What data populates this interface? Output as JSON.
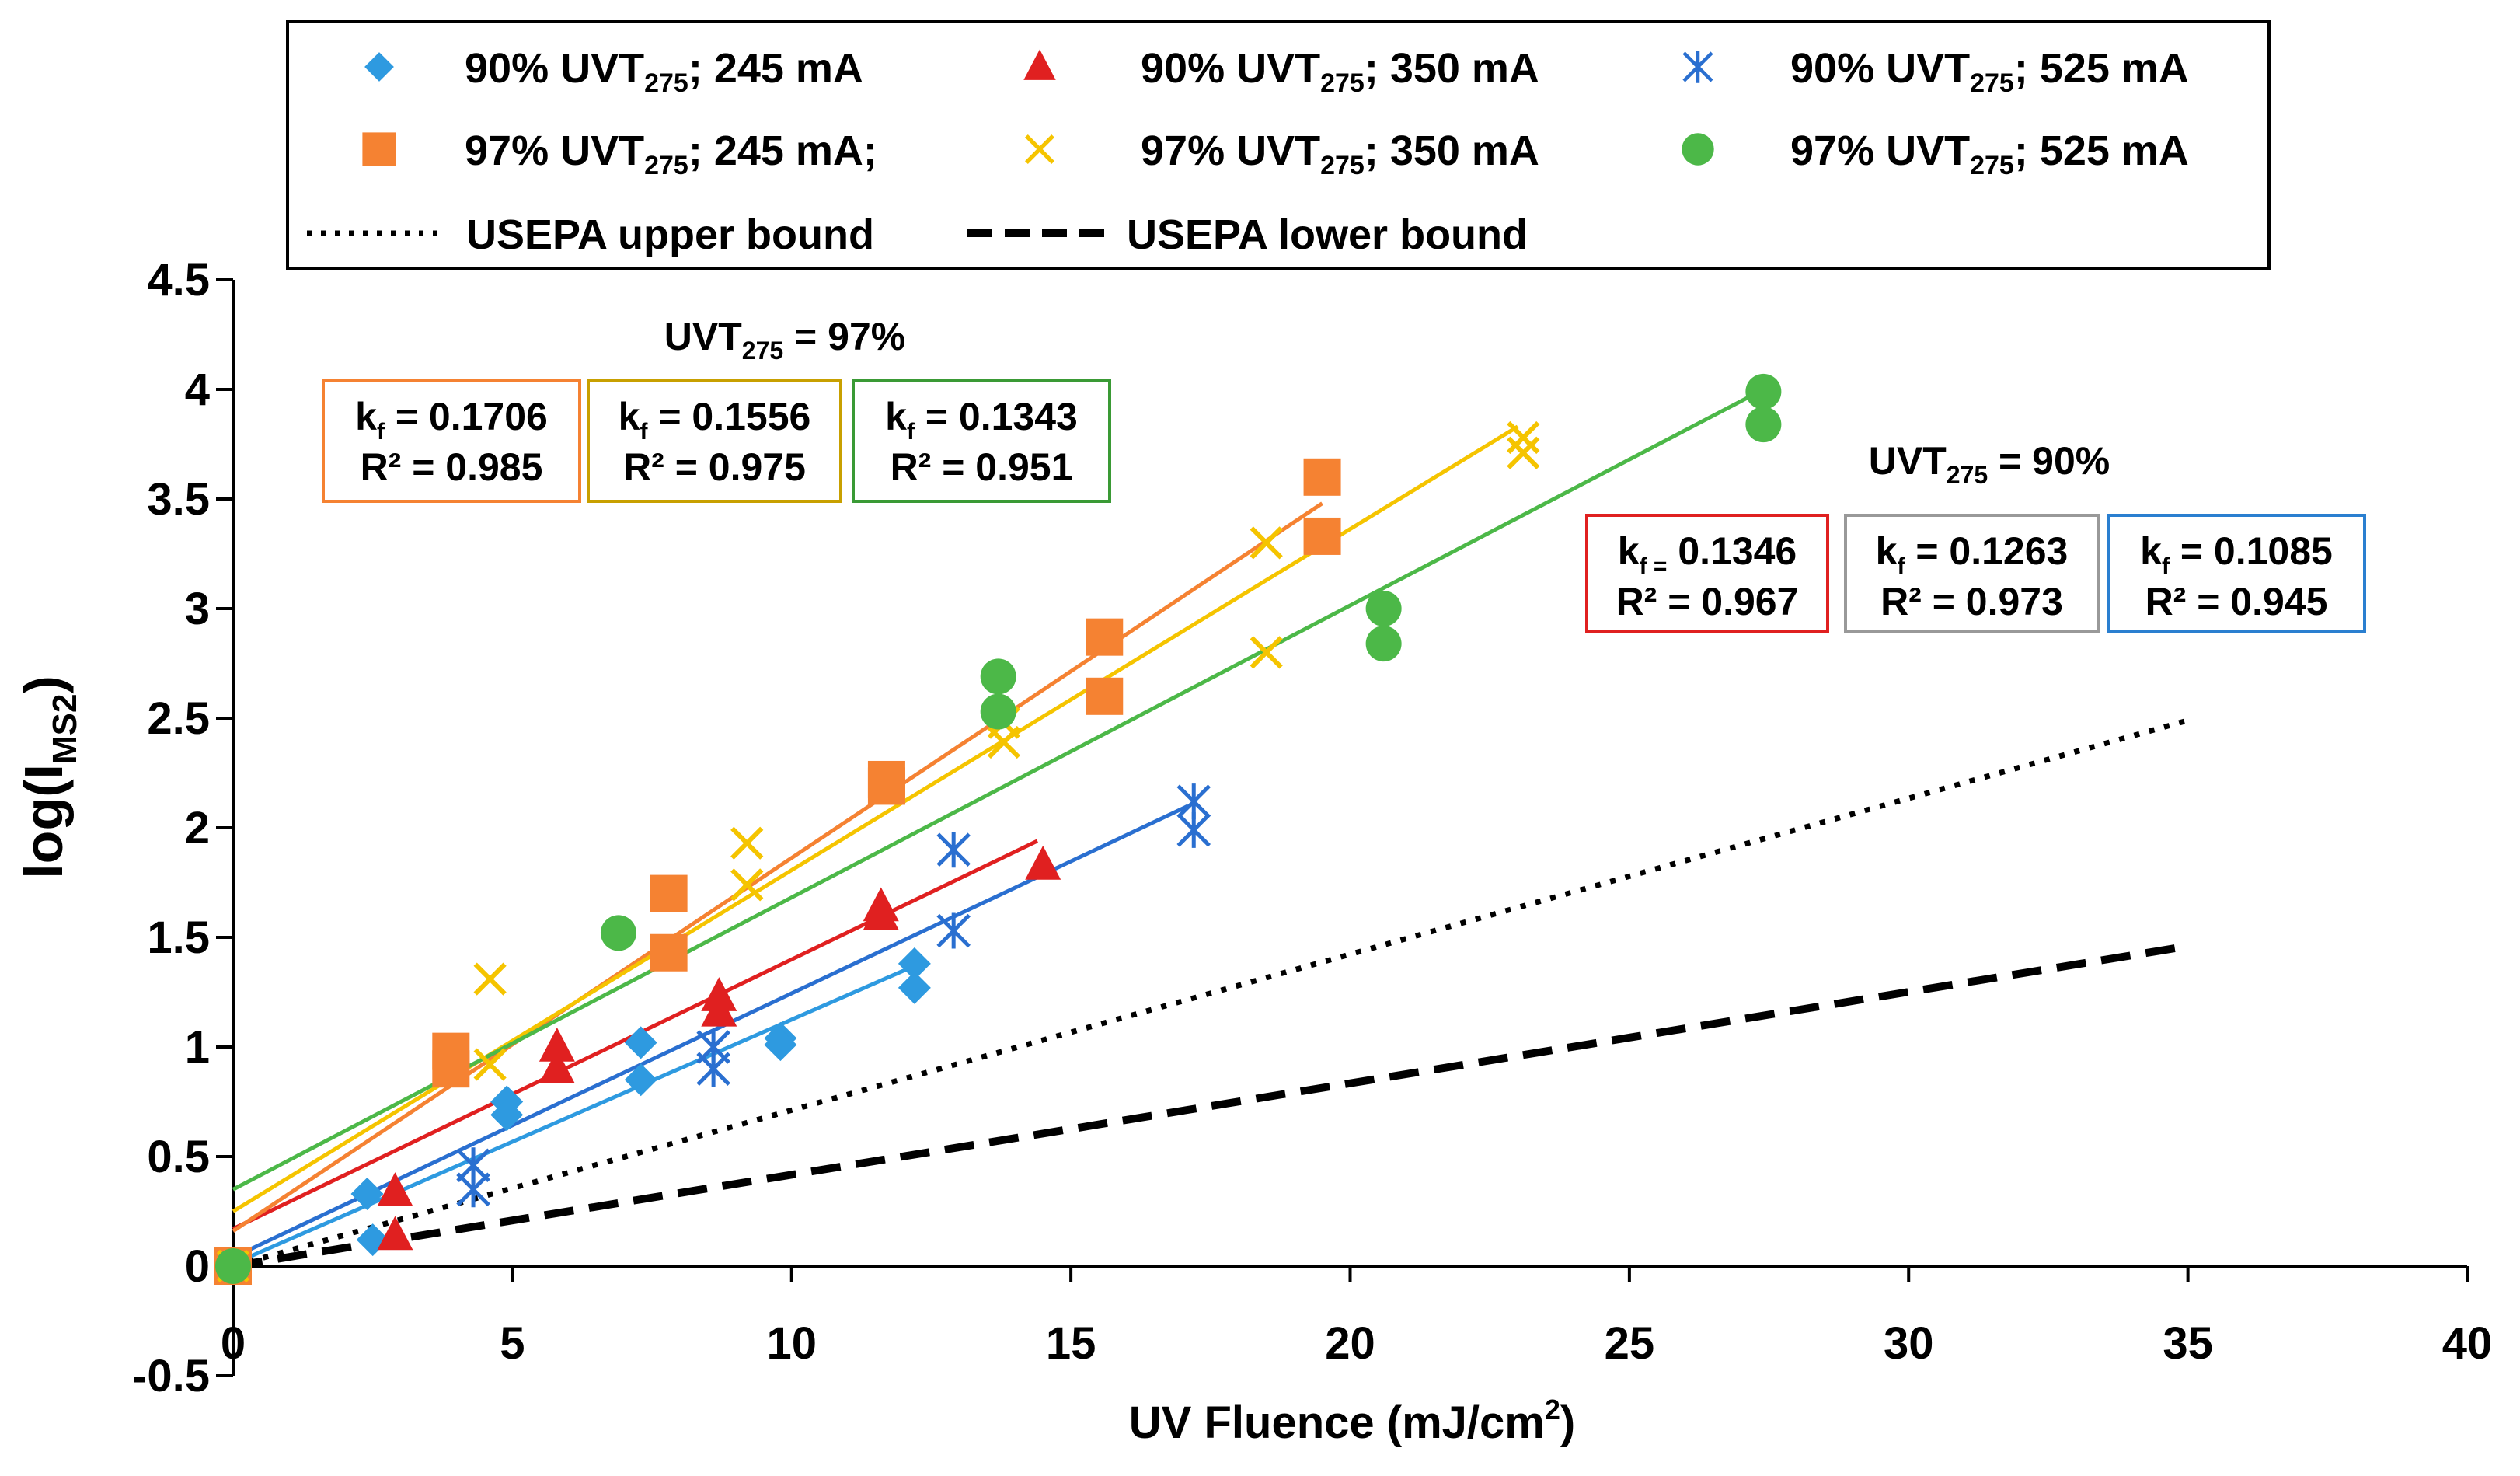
{
  "chart_data": {
    "type": "scatter",
    "xlabel": "UV Fluence (mJ/cm",
    "xlabel_sup": "2",
    "xlabel_end": ")",
    "ylabel_main": "log(I",
    "ylabel_sub": "MS2",
    "ylabel_end": ")",
    "xlim": [
      0,
      40
    ],
    "ylim": [
      -0.5,
      4.5
    ],
    "x_ticks": [
      0,
      5,
      10,
      15,
      20,
      25,
      30,
      35,
      40
    ],
    "x_tick_labels": [
      "0",
      "5",
      "10",
      "15",
      "20",
      "25",
      "30",
      "35",
      "40"
    ],
    "y_ticks": [
      -0.5,
      0,
      0.5,
      1,
      1.5,
      2,
      2.5,
      3,
      3.5,
      4,
      4.5
    ],
    "y_tick_labels": [
      "-0.5",
      "0",
      "0.5",
      "1",
      "1.5",
      "2",
      "2.5",
      "3",
      "3.5",
      "4",
      "4.5"
    ],
    "grid": false,
    "legend_position": "top",
    "series": [
      {
        "id": "s90_245",
        "uvt": "90%",
        "label_pre": "UVT",
        "label_sub": "275",
        "current": "; 245 mA",
        "color": "#2E9AE0",
        "marker": "diamond",
        "points": [
          [
            0,
            0
          ],
          [
            2.4,
            0.33
          ],
          [
            2.5,
            0.12
          ],
          [
            4.9,
            0.75
          ],
          [
            4.9,
            0.69
          ],
          [
            7.3,
            1.02
          ],
          [
            7.3,
            0.85
          ],
          [
            9.8,
            1.04
          ],
          [
            9.8,
            1.01
          ],
          [
            12.2,
            1.38
          ],
          [
            12.2,
            1.27
          ]
        ],
        "fit": {
          "x": [
            0,
            12.2
          ],
          "y": [
            0.01,
            1.37
          ]
        }
      },
      {
        "id": "s90_350",
        "uvt": "90%",
        "label_pre": "UVT",
        "label_sub": "275",
        "current": "; 350 mA",
        "color": "#E02020",
        "marker": "triangle",
        "points": [
          [
            0,
            0
          ],
          [
            2.9,
            0.34
          ],
          [
            2.9,
            0.14
          ],
          [
            5.8,
            1.0
          ],
          [
            5.8,
            0.9
          ],
          [
            8.7,
            1.23
          ],
          [
            8.7,
            1.16
          ],
          [
            11.6,
            1.64
          ],
          [
            11.6,
            1.6
          ],
          [
            14.5,
            1.83
          ]
        ],
        "fit": {
          "x": [
            0,
            14.4
          ],
          "y": [
            0.17,
            1.94
          ]
        }
      },
      {
        "id": "s90_525",
        "uvt": "90%",
        "label_pre": "UVT",
        "label_sub": "275",
        "current": "; 525 mA",
        "color": "#2A6FD0",
        "marker": "asterisk",
        "points": [
          [
            0,
            0
          ],
          [
            4.3,
            0.46
          ],
          [
            4.3,
            0.35
          ],
          [
            8.6,
            1.0
          ],
          [
            8.6,
            0.9
          ],
          [
            12.9,
            1.9
          ],
          [
            12.9,
            1.53
          ],
          [
            17.2,
            2.12
          ],
          [
            17.2,
            1.99
          ]
        ],
        "fit": {
          "x": [
            0,
            17.1
          ],
          "y": [
            0.04,
            2.1
          ]
        }
      },
      {
        "id": "s97_245",
        "uvt": "97%",
        "label_pre": "UVT",
        "label_sub": "275",
        "current": "; 245 mA;",
        "color": "#F58232",
        "marker": "square",
        "points": [
          [
            0,
            0
          ],
          [
            3.9,
            0.98
          ],
          [
            3.9,
            0.9
          ],
          [
            7.8,
            1.7
          ],
          [
            7.8,
            1.43
          ],
          [
            11.7,
            2.22
          ],
          [
            11.7,
            2.19
          ],
          [
            15.6,
            2.87
          ],
          [
            15.6,
            2.6
          ],
          [
            19.5,
            3.6
          ],
          [
            19.5,
            3.33
          ]
        ],
        "fit": {
          "x": [
            0,
            19.5
          ],
          "y": [
            0.16,
            3.48
          ]
        }
      },
      {
        "id": "s97_350",
        "uvt": "97%",
        "label_pre": "UVT",
        "label_sub": "275",
        "current": "; 350 mA",
        "color": "#F5C400",
        "marker": "cross",
        "points": [
          [
            0,
            0
          ],
          [
            4.6,
            1.31
          ],
          [
            4.6,
            0.92
          ],
          [
            9.2,
            1.93
          ],
          [
            9.2,
            1.74
          ],
          [
            13.8,
            2.48
          ],
          [
            13.8,
            2.39
          ],
          [
            18.5,
            3.3
          ],
          [
            18.5,
            2.8
          ],
          [
            23.1,
            3.78
          ],
          [
            23.1,
            3.71
          ]
        ],
        "fit": {
          "x": [
            0,
            23.0
          ],
          "y": [
            0.25,
            3.83
          ]
        }
      },
      {
        "id": "s97_525",
        "uvt": "97%",
        "label_pre": "UVT",
        "label_sub": "275",
        "current": "; 525 mA",
        "color": "#4CB848",
        "marker": "circle",
        "points": [
          [
            0,
            0
          ],
          [
            6.9,
            1.52
          ],
          [
            13.7,
            2.69
          ],
          [
            13.7,
            2.53
          ],
          [
            20.6,
            3.0
          ],
          [
            20.6,
            2.84
          ],
          [
            27.4,
            3.99
          ],
          [
            27.4,
            3.84
          ]
        ],
        "fit": {
          "x": [
            0,
            27.4
          ],
          "y": [
            0.35,
            4.0
          ]
        }
      }
    ],
    "bounds": [
      {
        "id": "upper",
        "label": "USEPA upper bound",
        "style": "dotted",
        "x": [
          0,
          35
        ],
        "y": [
          0,
          2.49
        ]
      },
      {
        "id": "lower",
        "label": "USEPA lower bound",
        "style": "dashed",
        "x": [
          0,
          35
        ],
        "y": [
          0,
          1.46
        ]
      }
    ],
    "group_labels": [
      {
        "id": "g97",
        "pre": "UVT",
        "sub": "275",
        "post": " = 97%"
      },
      {
        "id": "g90",
        "pre": "UVT",
        "sub": "275",
        "post": " = 90%"
      }
    ],
    "annotations": [
      {
        "group": "97",
        "color": "#F58232",
        "k_label": "k",
        "k_sub": "f",
        "k_eq": "= 0.1706",
        "r2": "R² = 0.985"
      },
      {
        "group": "97",
        "color": "#C8A000",
        "k_label": "k",
        "k_sub": "f",
        "k_eq": "= 0.1556",
        "r2": "R² = 0.975"
      },
      {
        "group": "97",
        "color": "#3A9A35",
        "k_label": "k",
        "k_sub": "f",
        "k_eq": "= 0.1343",
        "r2": "R² = 0.951"
      },
      {
        "group": "90",
        "color": "#E02020",
        "k_label": "k",
        "k_sub": "f =",
        "k_eq": "0.1346",
        "r2": "R² = 0.967"
      },
      {
        "group": "90",
        "color": "#999999",
        "k_label": "k",
        "k_sub": "f",
        "k_eq": "= 0.1263",
        "r2": "R² = 0.973"
      },
      {
        "group": "90",
        "color": "#2A7FD0",
        "k_label": "k",
        "k_sub": "f",
        "k_eq": "= 0.1085",
        "r2": "R² = 0.945"
      }
    ]
  }
}
